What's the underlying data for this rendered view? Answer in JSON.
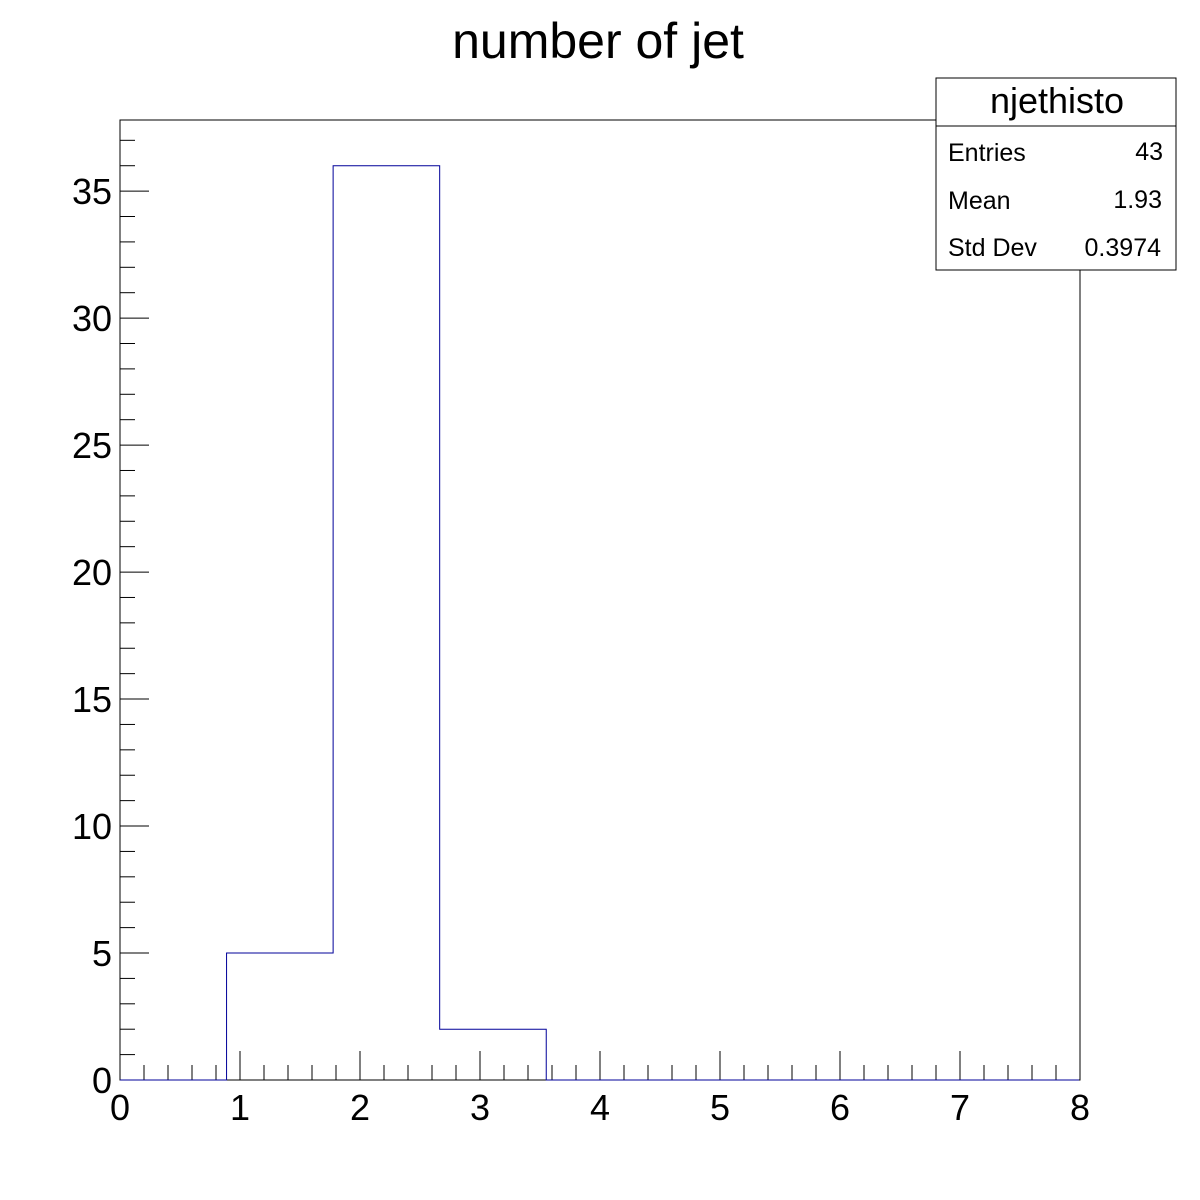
{
  "chart_data": {
    "type": "bar",
    "title": "number of jet",
    "xlabel": "",
    "ylabel": "",
    "bin_edges": [
      0.0,
      0.888,
      1.776,
      2.664,
      3.552,
      4.44,
      5.328,
      6.216,
      7.104,
      7.992
    ],
    "values": [
      0,
      5,
      36,
      2,
      0,
      0,
      0,
      0,
      0
    ],
    "xlim": [
      0,
      8
    ],
    "ylim": [
      0,
      37.8
    ],
    "x_ticks": [
      0,
      1,
      2,
      3,
      4,
      5,
      6,
      7,
      8
    ],
    "y_ticks": [
      0,
      5,
      10,
      15,
      20,
      25,
      30,
      35
    ],
    "grid": false,
    "line_color": "#000099",
    "stats_box": {
      "placement": "top-right",
      "name": "njethisto",
      "rows": [
        {
          "label": "Entries",
          "value": "43"
        },
        {
          "label": "Mean",
          "value": "1.93"
        },
        {
          "label": "Std Dev",
          "value": "0.3974"
        }
      ]
    }
  }
}
